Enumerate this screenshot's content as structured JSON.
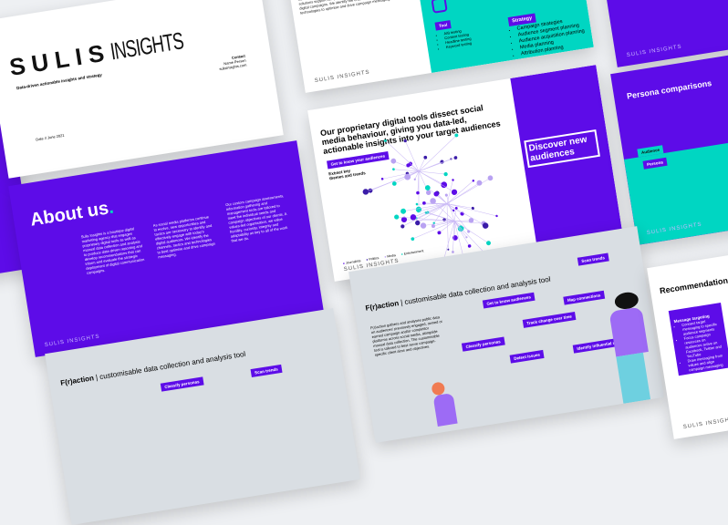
{
  "brand": {
    "name_bold": "SULIS",
    "name_light": "INSIGHTS",
    "footer": "SULIS INSIGHTS",
    "purple": "#5d0ce8",
    "teal": "#00d6c2"
  },
  "title_slide": {
    "tagline": "Data-driven actionable insights and strategy",
    "date": "Date // June 2021",
    "contact_label": "Contact",
    "contact_name": "Name Person",
    "contact_web": "sulisinsights.com"
  },
  "services_slide": {
    "body": "priority planning and objectives. We take a data-driven approach to this by our in-house team of data scientists, market researchers, and engineering specialists, to help our clients cut through the noise. Our custom data collection, management, and analysis solutions support comprehensive data-driven assessments of digital campaigns. We identify the channels, tactics, and technologies to optimise and drive campaign messaging through.",
    "tool_label": "Tool",
    "tool_items": [
      "A/B testing",
      "Content testing",
      "Headline testing",
      "Keyword testing"
    ],
    "strategy_label": "Strategy",
    "strategy_items": [
      "Campaign strategies",
      "Audience segment planning",
      "Audience acquisition planning",
      "Media planning",
      "Attribution planning"
    ]
  },
  "about_slide": {
    "title": "About us",
    "col1": "Sulis Insights is a boutique digital marketing agency that engages proprietary digital tools as well as manual data collection and analysis to produce data-driven reporting and develop recommendations that can inform and evaluate the strategic deployment of digital communication campaigns.",
    "col2": "As social media platforms continue to evolve, new opportunities and tactics are necessary to identify and effectively engage with today's digital audiences. We identify the channels, tactics and technologies to best optimise and drive campaign messaging.",
    "col3": "Our custom campaign assessments, information gathering and management tools are tailored to meet the individual needs and campaign objectives of our clients. A values-led organisation, we value humility, curiosity, integrity and adaptability as key to all of the work that we do."
  },
  "social_slide": {
    "title": "Our proprietary digital tools dissect social media behaviour, giving you data-led, actionable insights into your target audiences",
    "button": "Get to know your audiences",
    "subtext": "Extract key themes and trends",
    "callout": "Discover new audiences",
    "legend": [
      "Journalists",
      "Politics",
      "Media",
      "Entertainment"
    ]
  },
  "persona_slide": {
    "title": "Persona comparisons",
    "tag1": "Audience",
    "tag2": "Persona"
  },
  "fraction_slide": {
    "title_bold": "F(r)action",
    "title_rest": "| customisable data collection and analysis tool",
    "body": "F(r)action gathers and analyses public data on audiences' previously engaged, owned or earned campaign and/or competitor platforms across social media, alongside manual data collection. The customisable tool is tailored to best serve campaign-specific client aims and objectives.",
    "nodes": [
      "Get to know audiences",
      "Scan trends",
      "Map connections",
      "Track change over time",
      "Classify personas",
      "Detect issues",
      "Identify influential users"
    ]
  },
  "recommendations_slide": {
    "title": "Recommendations",
    "card_title": "Message targeting",
    "card_items": [
      "Connect target messaging to specific audience segments",
      "Focus campaign resources on audiences active on Facebook, Twitter and YouTube",
      "Draw messaging from values and align campaign messaging"
    ]
  }
}
